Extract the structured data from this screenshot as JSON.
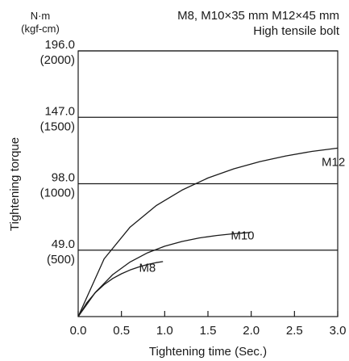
{
  "chart_data": {
    "type": "line",
    "title_line1": "M8, M10×35 mm M12×45 mm",
    "title_line2": "High tensile bolt",
    "unit_top": "N·m",
    "unit_bottom": "(kgf-cm)",
    "xlabel": "Tightening time (Sec.)",
    "ylabel": "Tightening torque",
    "xlim": [
      0,
      3.0
    ],
    "ylim": [
      0,
      196.0
    ],
    "grid": "horizontal",
    "x_ticks": [
      {
        "value": 0.0,
        "label": "0.0"
      },
      {
        "value": 0.5,
        "label": "0.5"
      },
      {
        "value": 1.0,
        "label": "1.0"
      },
      {
        "value": 1.5,
        "label": "1.5"
      },
      {
        "value": 2.0,
        "label": "2.0"
      },
      {
        "value": 2.5,
        "label": "2.5"
      },
      {
        "value": 3.0,
        "label": "3.0"
      }
    ],
    "y_ticks": [
      {
        "value": 49.0,
        "label": "49.0",
        "sublabel": "(500)"
      },
      {
        "value": 98.0,
        "label": "98.0",
        "sublabel": "(1000)"
      },
      {
        "value": 147.0,
        "label": "147.0",
        "sublabel": "(1500)"
      },
      {
        "value": 196.0,
        "label": "196.0",
        "sublabel": "(2000)"
      }
    ],
    "series": [
      {
        "name": "M8",
        "label_at": [
          0.8,
          33
        ],
        "x": [
          0,
          0.1,
          0.2,
          0.3,
          0.4,
          0.5,
          0.6,
          0.7,
          0.8,
          0.9,
          0.98
        ],
        "y": [
          0,
          10.2,
          17.8,
          23.6,
          28.1,
          31.6,
          34.4,
          36.6,
          38.4,
          39.8,
          40.6
        ]
      },
      {
        "name": "M10",
        "label_at": [
          1.9,
          57
        ],
        "x": [
          0,
          0.2,
          0.4,
          0.6,
          0.8,
          1.0,
          1.2,
          1.4,
          1.6,
          1.8,
          1.99
        ],
        "y": [
          0,
          18.0,
          31.0,
          40.3,
          47.0,
          51.9,
          55.4,
          58.0,
          59.8,
          61.1,
          62.1
        ]
      },
      {
        "name": "M12",
        "label_at": [
          2.95,
          111
        ],
        "x": [
          0,
          0.3,
          0.6,
          0.9,
          1.2,
          1.5,
          1.8,
          2.1,
          2.4,
          2.7,
          3.0
        ],
        "y": [
          0,
          42.6,
          66.0,
          81.8,
          93.3,
          102.2,
          109.0,
          114.3,
          118.5,
          121.8,
          124.3
        ]
      }
    ]
  }
}
